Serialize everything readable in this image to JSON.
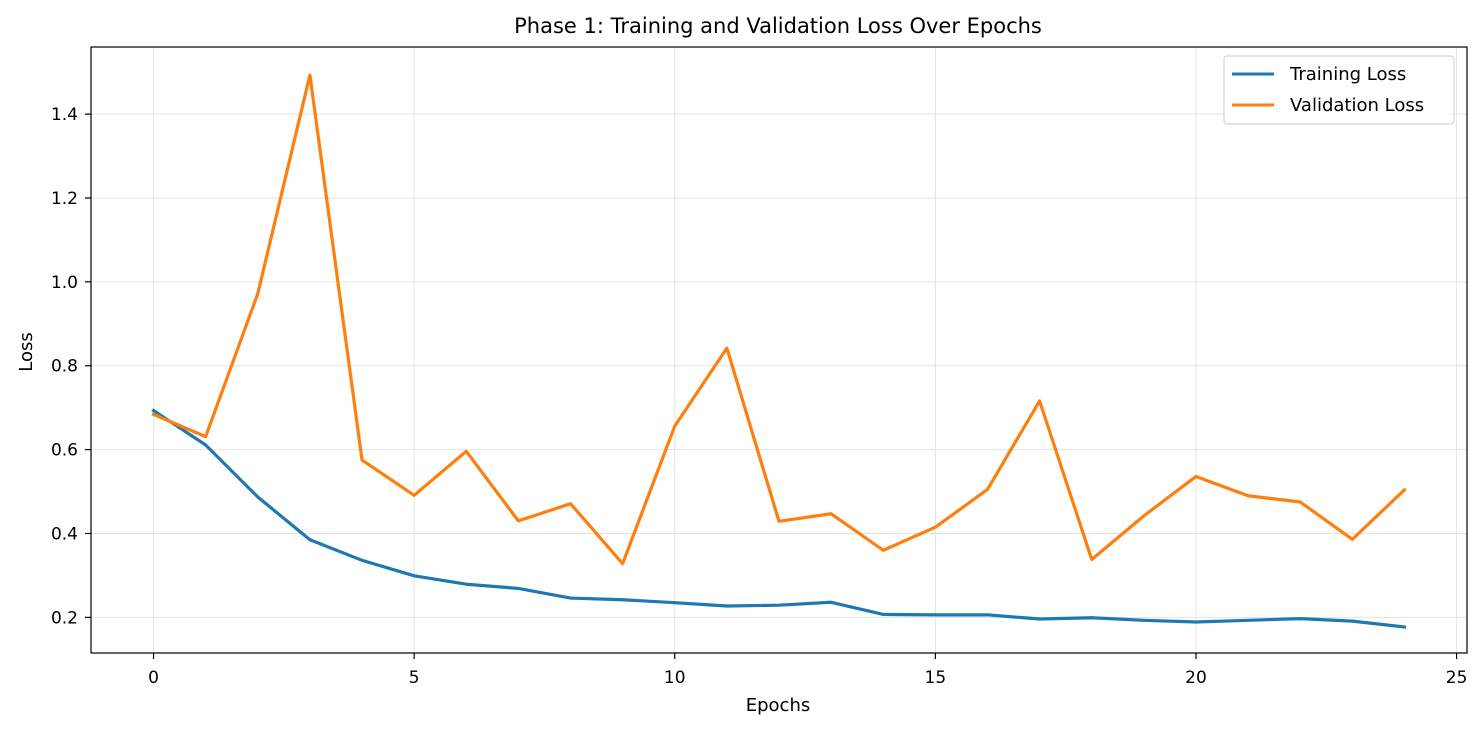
{
  "chart_data": {
    "type": "line",
    "title": "Phase 1: Training and Validation Loss Over Epochs",
    "xlabel": "Epochs",
    "ylabel": "Loss",
    "xlim": [
      -1.2,
      25.2
    ],
    "ylim": [
      0.115,
      1.56
    ],
    "xticks": [
      0,
      5,
      10,
      15,
      20,
      25
    ],
    "yticks": [
      0.2,
      0.4,
      0.6,
      0.8,
      1.0,
      1.2,
      1.4
    ],
    "ytick_labels": [
      "0.2",
      "0.4",
      "0.6",
      "0.8",
      "1.0",
      "1.2",
      "1.4"
    ],
    "grid": true,
    "legend_position": "top-right",
    "x": [
      0,
      1,
      2,
      3,
      4,
      5,
      6,
      7,
      8,
      9,
      10,
      11,
      12,
      13,
      14,
      15,
      16,
      17,
      18,
      19,
      20,
      21,
      22,
      23,
      24
    ],
    "series": [
      {
        "name": "Training Loss",
        "color": "#1f77b4",
        "values": [
          0.693,
          0.611,
          0.487,
          0.385,
          0.336,
          0.299,
          0.279,
          0.269,
          0.246,
          0.242,
          0.235,
          0.227,
          0.229,
          0.236,
          0.207,
          0.206,
          0.206,
          0.196,
          0.199,
          0.193,
          0.189,
          0.193,
          0.197,
          0.191,
          0.177
        ]
      },
      {
        "name": "Validation Loss",
        "color": "#ff7f0e",
        "values": [
          0.684,
          0.631,
          0.972,
          1.493,
          0.575,
          0.491,
          0.596,
          0.43,
          0.471,
          0.328,
          0.656,
          0.842,
          0.429,
          0.447,
          0.36,
          0.415,
          0.505,
          0.716,
          0.338,
          0.442,
          0.536,
          0.49,
          0.475,
          0.386,
          0.504
        ]
      }
    ]
  }
}
